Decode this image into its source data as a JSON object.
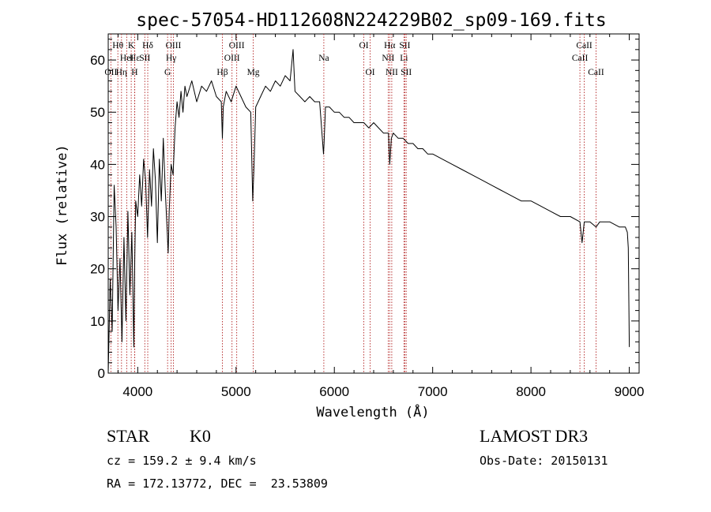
{
  "chart_data": {
    "type": "line",
    "title": "spec-57054-HD112608N224229B02_sp09-169.fits",
    "xlabel": "Wavelength (Å)",
    "ylabel": "Flux (relative)",
    "xlim": [
      3700,
      9100
    ],
    "ylim": [
      0,
      65
    ],
    "xticks": [
      4000,
      5000,
      6000,
      7000,
      8000,
      9000
    ],
    "yticks": [
      0,
      10,
      20,
      30,
      40,
      50,
      60
    ],
    "series": [
      {
        "name": "spectrum",
        "x": [
          3700,
          3720,
          3740,
          3760,
          3780,
          3800,
          3820,
          3840,
          3860,
          3880,
          3900,
          3920,
          3940,
          3960,
          3970,
          3980,
          4000,
          4020,
          4040,
          4060,
          4080,
          4100,
          4120,
          4140,
          4160,
          4180,
          4200,
          4220,
          4240,
          4260,
          4280,
          4300,
          4310,
          4320,
          4340,
          4360,
          4380,
          4400,
          4420,
          4440,
          4460,
          4480,
          4500,
          4550,
          4600,
          4650,
          4700,
          4750,
          4800,
          4850,
          4861,
          4870,
          4900,
          4950,
          5000,
          5050,
          5100,
          5150,
          5170,
          5183,
          5200,
          5250,
          5300,
          5350,
          5400,
          5450,
          5500,
          5550,
          5580,
          5600,
          5650,
          5700,
          5750,
          5800,
          5850,
          5890,
          5895,
          5910,
          5950,
          6000,
          6050,
          6100,
          6150,
          6200,
          6250,
          6300,
          6350,
          6400,
          6450,
          6500,
          6550,
          6563,
          6580,
          6600,
          6650,
          6700,
          6750,
          6800,
          6850,
          6900,
          6950,
          7000,
          7100,
          7200,
          7300,
          7400,
          7500,
          7600,
          7700,
          7800,
          7900,
          8000,
          8100,
          8200,
          8300,
          8400,
          8498,
          8520,
          8542,
          8560,
          8600,
          8662,
          8700,
          8800,
          8900,
          8960,
          8980,
          8990,
          9000
        ],
        "y": [
          0,
          18,
          8,
          36,
          28,
          12,
          22,
          6,
          26,
          10,
          31,
          15,
          27,
          5,
          22,
          33,
          30,
          38,
          32,
          41,
          37,
          26,
          39,
          32,
          43,
          37,
          25,
          41,
          33,
          45,
          35,
          27,
          23,
          31,
          40,
          38,
          47,
          52,
          49,
          54,
          50,
          55,
          53,
          56,
          52,
          55,
          54,
          56,
          53,
          52,
          45,
          51,
          54,
          52,
          55,
          53,
          51,
          50,
          33,
          40,
          51,
          53,
          55,
          54,
          56,
          55,
          57,
          56,
          62,
          54,
          53,
          52,
          53,
          52,
          52,
          42,
          44,
          51,
          51,
          50,
          50,
          49,
          49,
          48,
          48,
          48,
          47,
          48,
          47,
          46,
          46,
          40,
          45,
          46,
          45,
          45,
          44,
          44,
          43,
          43,
          42,
          42,
          41,
          40,
          39,
          38,
          37,
          36,
          35,
          34,
          33,
          33,
          32,
          31,
          30,
          30,
          29,
          25,
          29,
          29,
          29,
          28,
          29,
          29,
          28,
          28,
          27,
          24,
          5
        ]
      }
    ],
    "line_markers": [
      {
        "w": 3727,
        "label": "OII",
        "row": 2
      },
      {
        "w": 3798,
        "label": "Hθ",
        "row": 0
      },
      {
        "w": 3835,
        "label": "Hη",
        "row": 2
      },
      {
        "w": 3889,
        "label": "HeI",
        "row": 1
      },
      {
        "w": 3934,
        "label": "K",
        "row": 0
      },
      {
        "w": 3970,
        "label": "Hε",
        "row": 1
      },
      {
        "w": 3968,
        "label": "H",
        "row": 2
      },
      {
        "w": 4072,
        "label": "SII",
        "row": 1
      },
      {
        "w": 4102,
        "label": "Hδ",
        "row": 0
      },
      {
        "w": 4304,
        "label": "G",
        "row": 2
      },
      {
        "w": 4340,
        "label": "Hγ",
        "row": 1
      },
      {
        "w": 4363,
        "label": "OIII",
        "row": 0
      },
      {
        "w": 4861,
        "label": "Hβ",
        "row": 2
      },
      {
        "w": 4959,
        "label": "OIII",
        "row": 1
      },
      {
        "w": 5007,
        "label": "OIII",
        "row": 0
      },
      {
        "w": 5175,
        "label": "Mg",
        "row": 2
      },
      {
        "w": 5893,
        "label": "Na",
        "row": 1
      },
      {
        "w": 6300,
        "label": "OI",
        "row": 0
      },
      {
        "w": 6364,
        "label": "OI",
        "row": 2
      },
      {
        "w": 6548,
        "label": "NII",
        "row": 1
      },
      {
        "w": 6563,
        "label": "Hα",
        "row": 0
      },
      {
        "w": 6584,
        "label": "NII",
        "row": 2
      },
      {
        "w": 6708,
        "label": "Li",
        "row": 1
      },
      {
        "w": 6717,
        "label": "SII",
        "row": 0
      },
      {
        "w": 6731,
        "label": "SII",
        "row": 2
      },
      {
        "w": 8498,
        "label": "CaII",
        "row": 1
      },
      {
        "w": 8542,
        "label": "CaII",
        "row": 0
      },
      {
        "w": 8662,
        "label": "CaII",
        "row": 2
      }
    ]
  },
  "info": {
    "class": "STAR",
    "subclass": "K0",
    "survey": "LAMOST DR3",
    "cz": "cz = 159.2 ± 9.4 km/s",
    "obs_date": "Obs-Date: 20150131",
    "coords": "RA = 172.13772, DEC =  23.53809"
  }
}
